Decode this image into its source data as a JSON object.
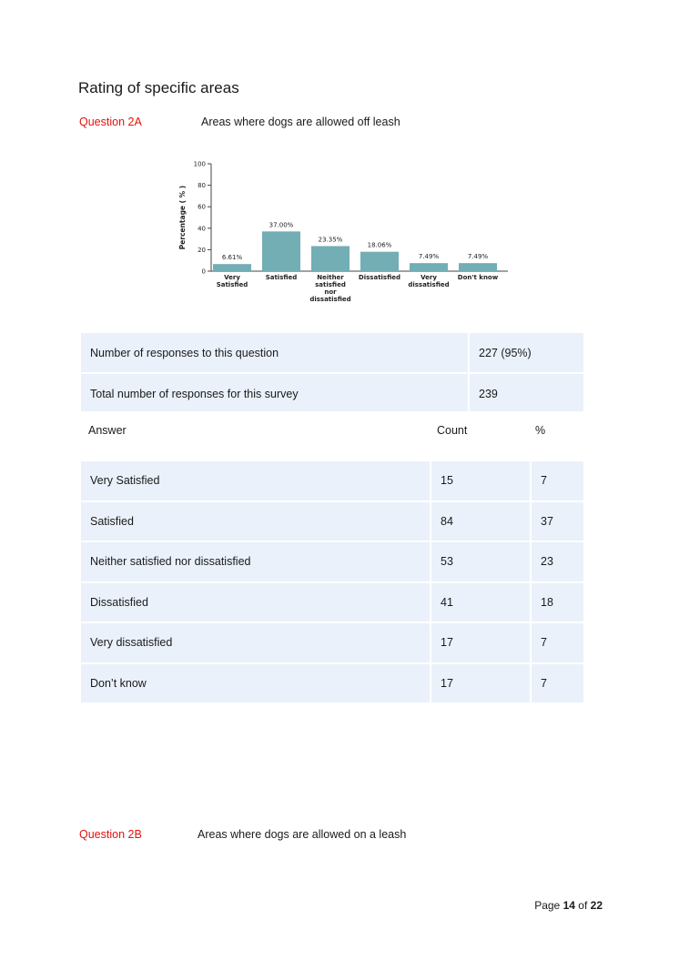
{
  "page_title": "Rating of specific areas",
  "q2a": {
    "label": "Question 2A",
    "text": "Areas where dogs are allowed off leash"
  },
  "chart_data": {
    "type": "bar",
    "categories": [
      [
        "Very",
        "Satisfied"
      ],
      [
        "Satisfied"
      ],
      [
        "Neither",
        "satisfied",
        "nor",
        "dissatisfied"
      ],
      [
        "Dissatisfied"
      ],
      [
        "Very",
        "dissatisfied"
      ],
      [
        "Don't know"
      ]
    ],
    "values": [
      6.61,
      37.0,
      23.35,
      18.06,
      7.49,
      7.49
    ],
    "data_labels": [
      "6.61%",
      "37.00%",
      "23.35%",
      "18.06%",
      "7.49%",
      "7.49%"
    ],
    "ylabel": "Percentage ( % )",
    "ylim": [
      0,
      100
    ],
    "yticks": [
      "0",
      "20",
      "40",
      "60",
      "80",
      "100"
    ],
    "bar_color": "#72aeb4"
  },
  "summary": {
    "rows": [
      {
        "label": "Number of responses to this question",
        "value": "227 (95%)"
      },
      {
        "label": "Total number of responses for this survey",
        "value": "239"
      }
    ]
  },
  "answers": {
    "headers": {
      "answer": "Answer",
      "count": "Count",
      "percent": "%"
    },
    "rows": [
      {
        "answer": "Very Satisfied",
        "count": "15",
        "percent": "7"
      },
      {
        "answer": "Satisfied",
        "count": "84",
        "percent": "37"
      },
      {
        "answer": "Neither satisfied nor dissatisfied",
        "count": "53",
        "percent": "23"
      },
      {
        "answer": "Dissatisfied",
        "count": "41",
        "percent": "18"
      },
      {
        "answer": "Very dissatisfied",
        "count": "17",
        "percent": "7"
      },
      {
        "answer": "Don’t know",
        "count": "17",
        "percent": "7"
      }
    ]
  },
  "q2b": {
    "label": "Question 2B",
    "text": "Areas where dogs are allowed on a leash"
  },
  "footer": {
    "prefix": "Page",
    "current": "14",
    "of": "of",
    "total": "22"
  },
  "colors": {
    "question_label": "#e3120b",
    "table_fill": "#eaf1fa"
  }
}
